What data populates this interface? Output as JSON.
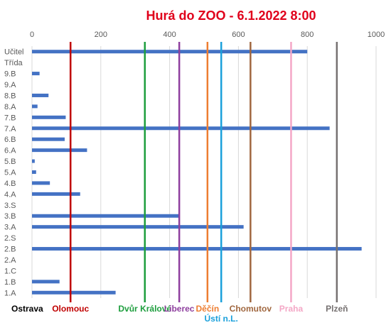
{
  "chart_data": {
    "type": "bar",
    "orientation": "horizontal",
    "title": "Hurá do ZOO - 6.1.2022 8:00",
    "title_color": "#e0001b",
    "xlim": [
      0,
      1000
    ],
    "xticks": [
      0,
      200,
      400,
      600,
      800,
      1000
    ],
    "grid": true,
    "bar_color": "#4472c4",
    "categories": [
      "Učitel",
      "Třída",
      "9.B",
      "9.A",
      "8.B",
      "8.A",
      "7.B",
      "7.A",
      "6.B",
      "6.A",
      "5.B",
      "5.A",
      "4.B",
      "4.A",
      "3.S",
      "3.B",
      "3.A",
      "2.S",
      "2.B",
      "2.A",
      "1.C",
      "1.B",
      "1.A"
    ],
    "values": [
      800,
      null,
      22,
      0,
      48,
      16,
      98,
      865,
      95,
      160,
      8,
      12,
      52,
      140,
      0,
      428,
      615,
      0,
      958,
      0,
      0,
      80,
      243
    ],
    "reference_lines": [
      {
        "name": "Ostrava",
        "value": 0,
        "color": "#000000"
      },
      {
        "name": "Olomouc",
        "value": 112,
        "color": "#c00000"
      },
      {
        "name": "Dvůr Králové",
        "value": 328,
        "color": "#1e9e3e"
      },
      {
        "name": "Liberec",
        "value": 428,
        "color": "#8e3f9e"
      },
      {
        "name": "Děčín",
        "value": 510,
        "color": "#ed7d31"
      },
      {
        "name": "Ústí n.L.",
        "value": 550,
        "color": "#1aa0db"
      },
      {
        "name": "Chomutov",
        "value": 635,
        "color": "#a0673f"
      },
      {
        "name": "Praha",
        "value": 753,
        "color": "#f4a7c6"
      },
      {
        "name": "Plzeň",
        "value": 886,
        "color": "#767171"
      }
    ]
  }
}
